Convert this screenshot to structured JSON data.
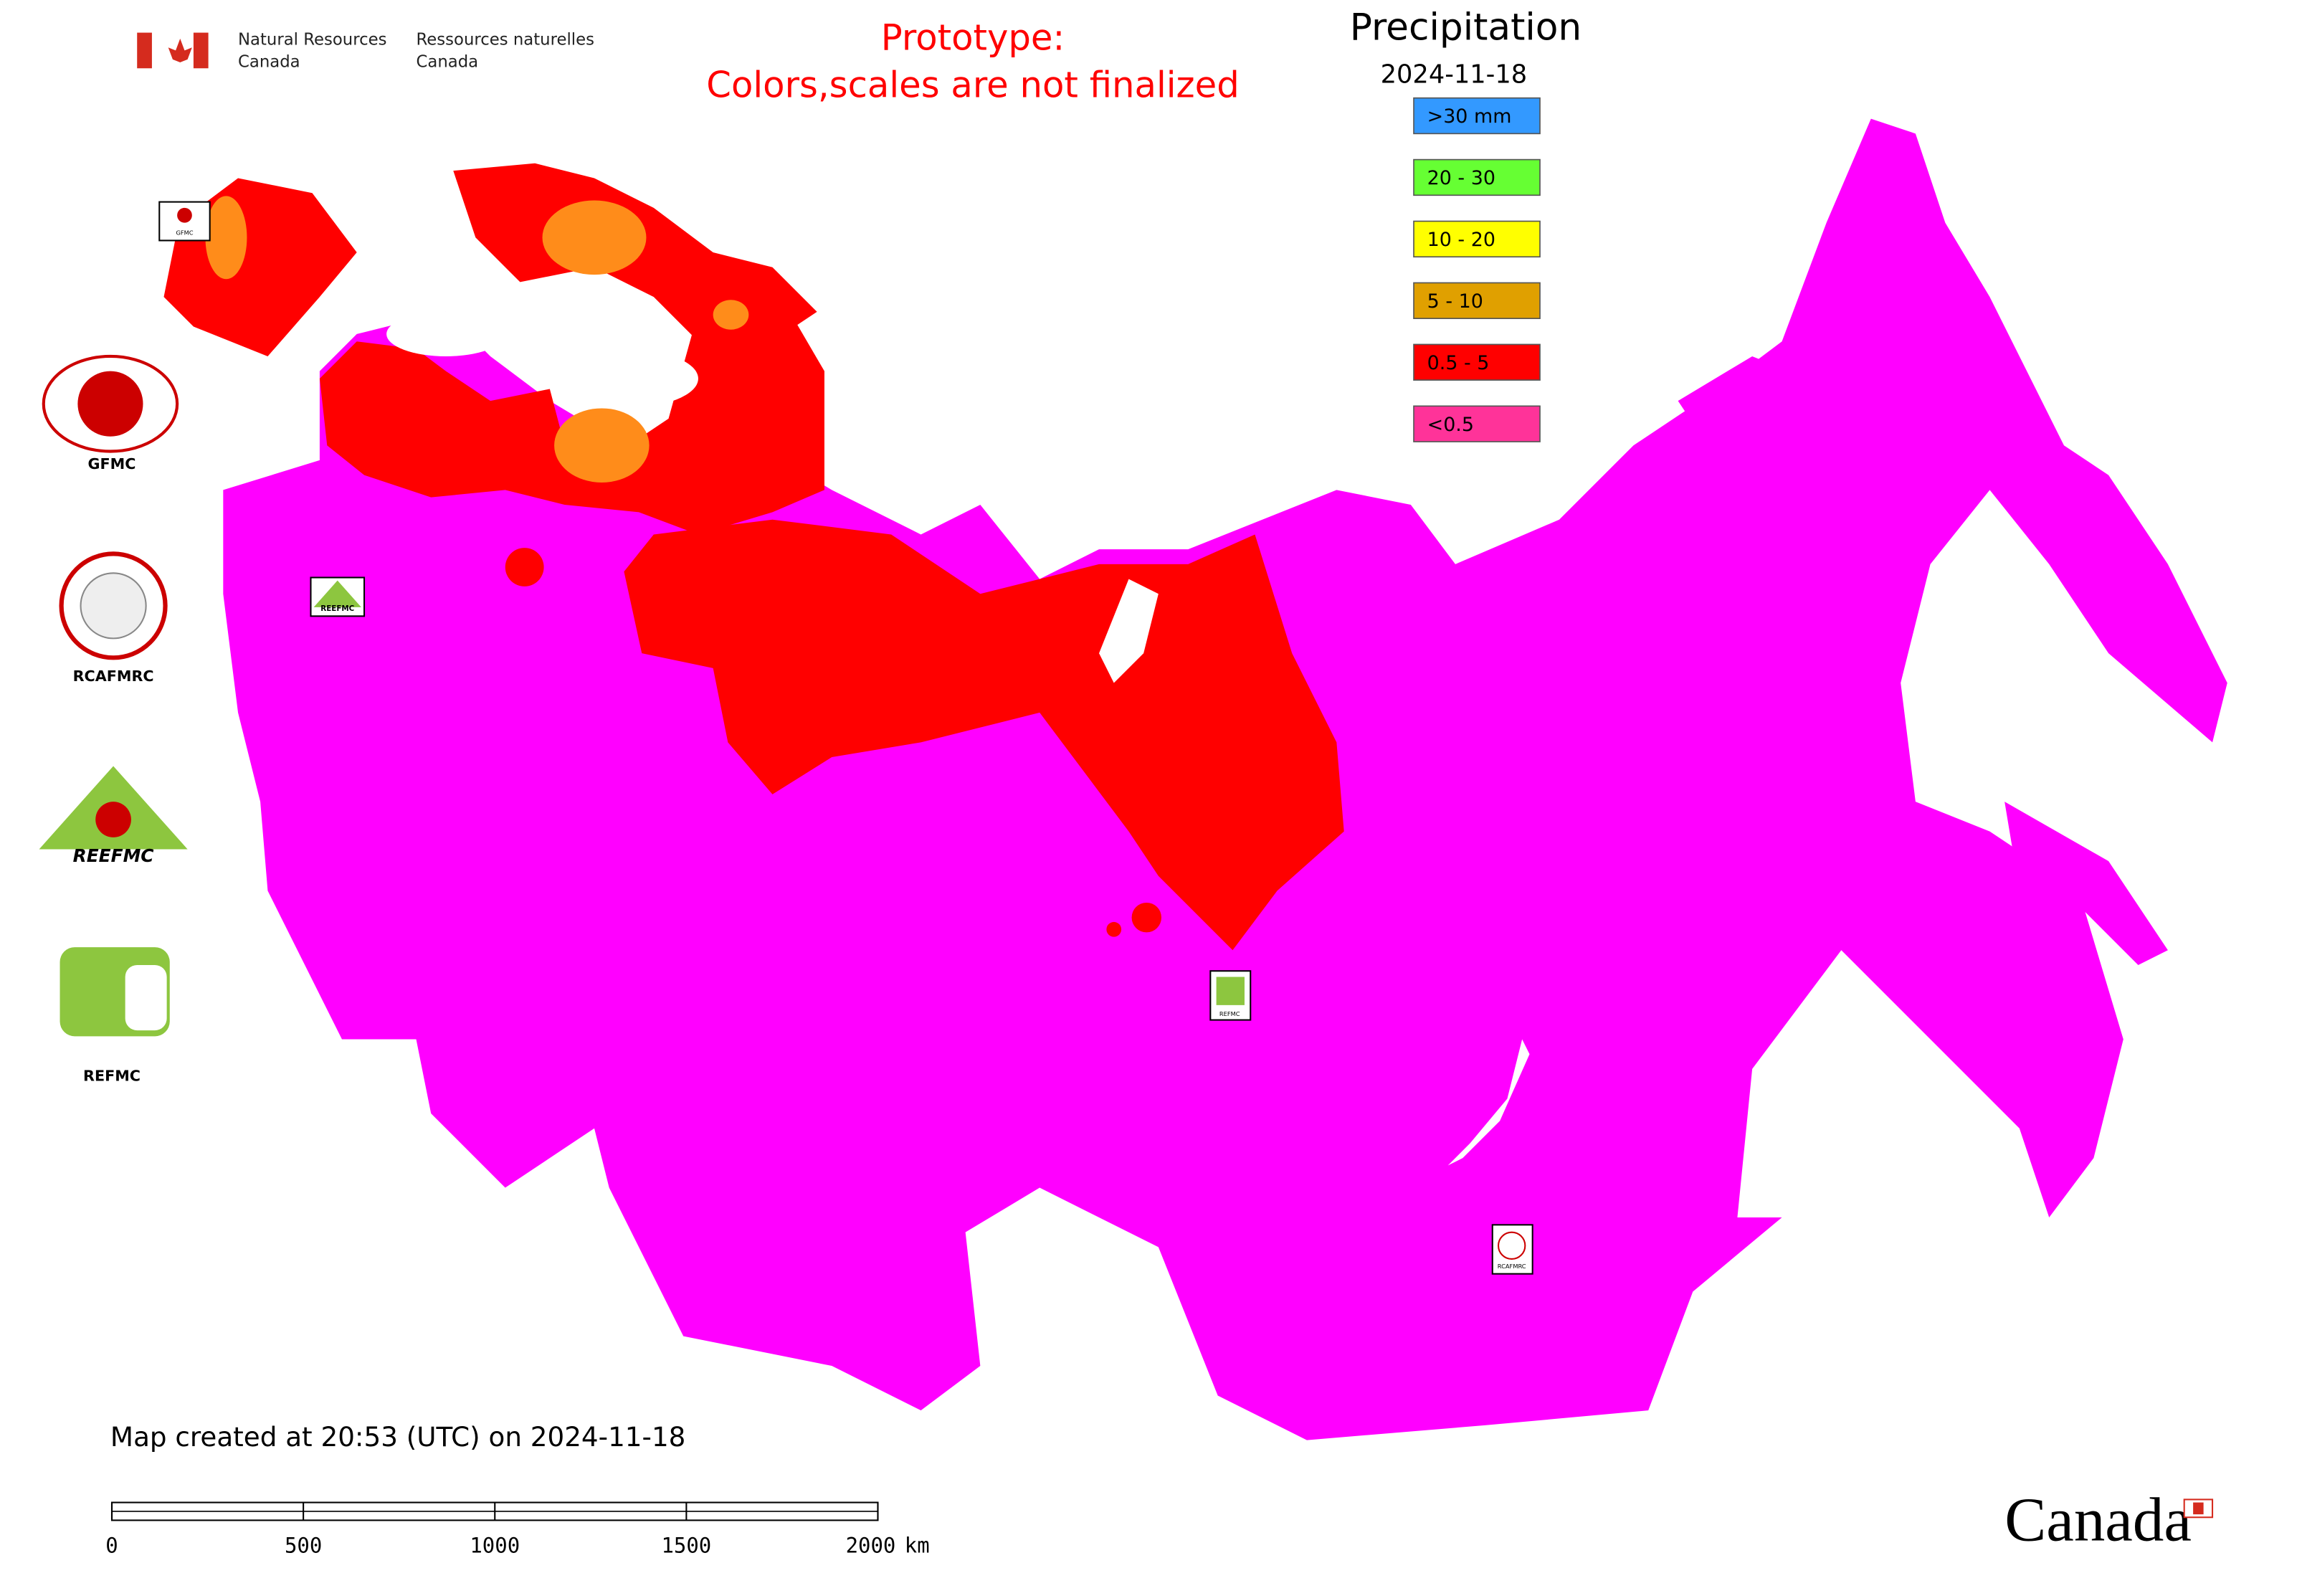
{
  "header": {
    "agency_en_1": "Natural Resources",
    "agency_en_2": "Canada",
    "agency_fr_1": "Ressources naturelles",
    "agency_fr_2": "Canada"
  },
  "notice": [
    "Prototype:",
    "Colors,scales are not finalized"
  ],
  "legend": {
    "title": "Precipitation",
    "date": "2024-11-18",
    "items": [
      {
        "label": ">30 mm",
        "color": "#3399ff"
      },
      {
        "label": "20 - 30",
        "color": "#66ff33"
      },
      {
        "label": "10 - 20",
        "color": "#ffff00"
      },
      {
        "label": "5 - 10",
        "color": "#e0a000"
      },
      {
        "label": "0.5 - 5",
        "color": "#ff0000"
      },
      {
        "label": "<0.5",
        "color": "#ff3399"
      }
    ]
  },
  "partner_logos": [
    "GFMC",
    "RCAFMRC",
    "REEFMC",
    "REFMC"
  ],
  "map_markers": [
    "GFMC",
    "REEFMC",
    "REFMC",
    "RCAFMRC"
  ],
  "footer": {
    "created": "Map created at 20:53 (UTC) on 2024-11-18",
    "scale_ticks": [
      0,
      500,
      1000,
      1500,
      2000
    ],
    "scale_unit": "km",
    "wordmark": "Canada"
  }
}
